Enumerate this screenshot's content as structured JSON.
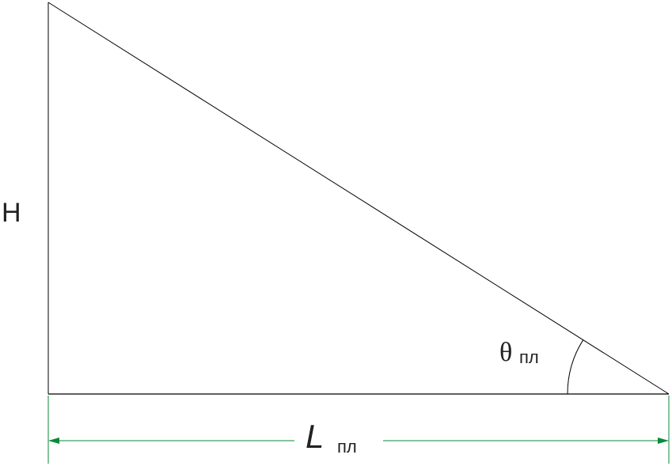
{
  "labels": {
    "height": "H",
    "angle": "θ",
    "angle_subscript": "пл",
    "length": "L",
    "length_subscript": "пл"
  }
}
